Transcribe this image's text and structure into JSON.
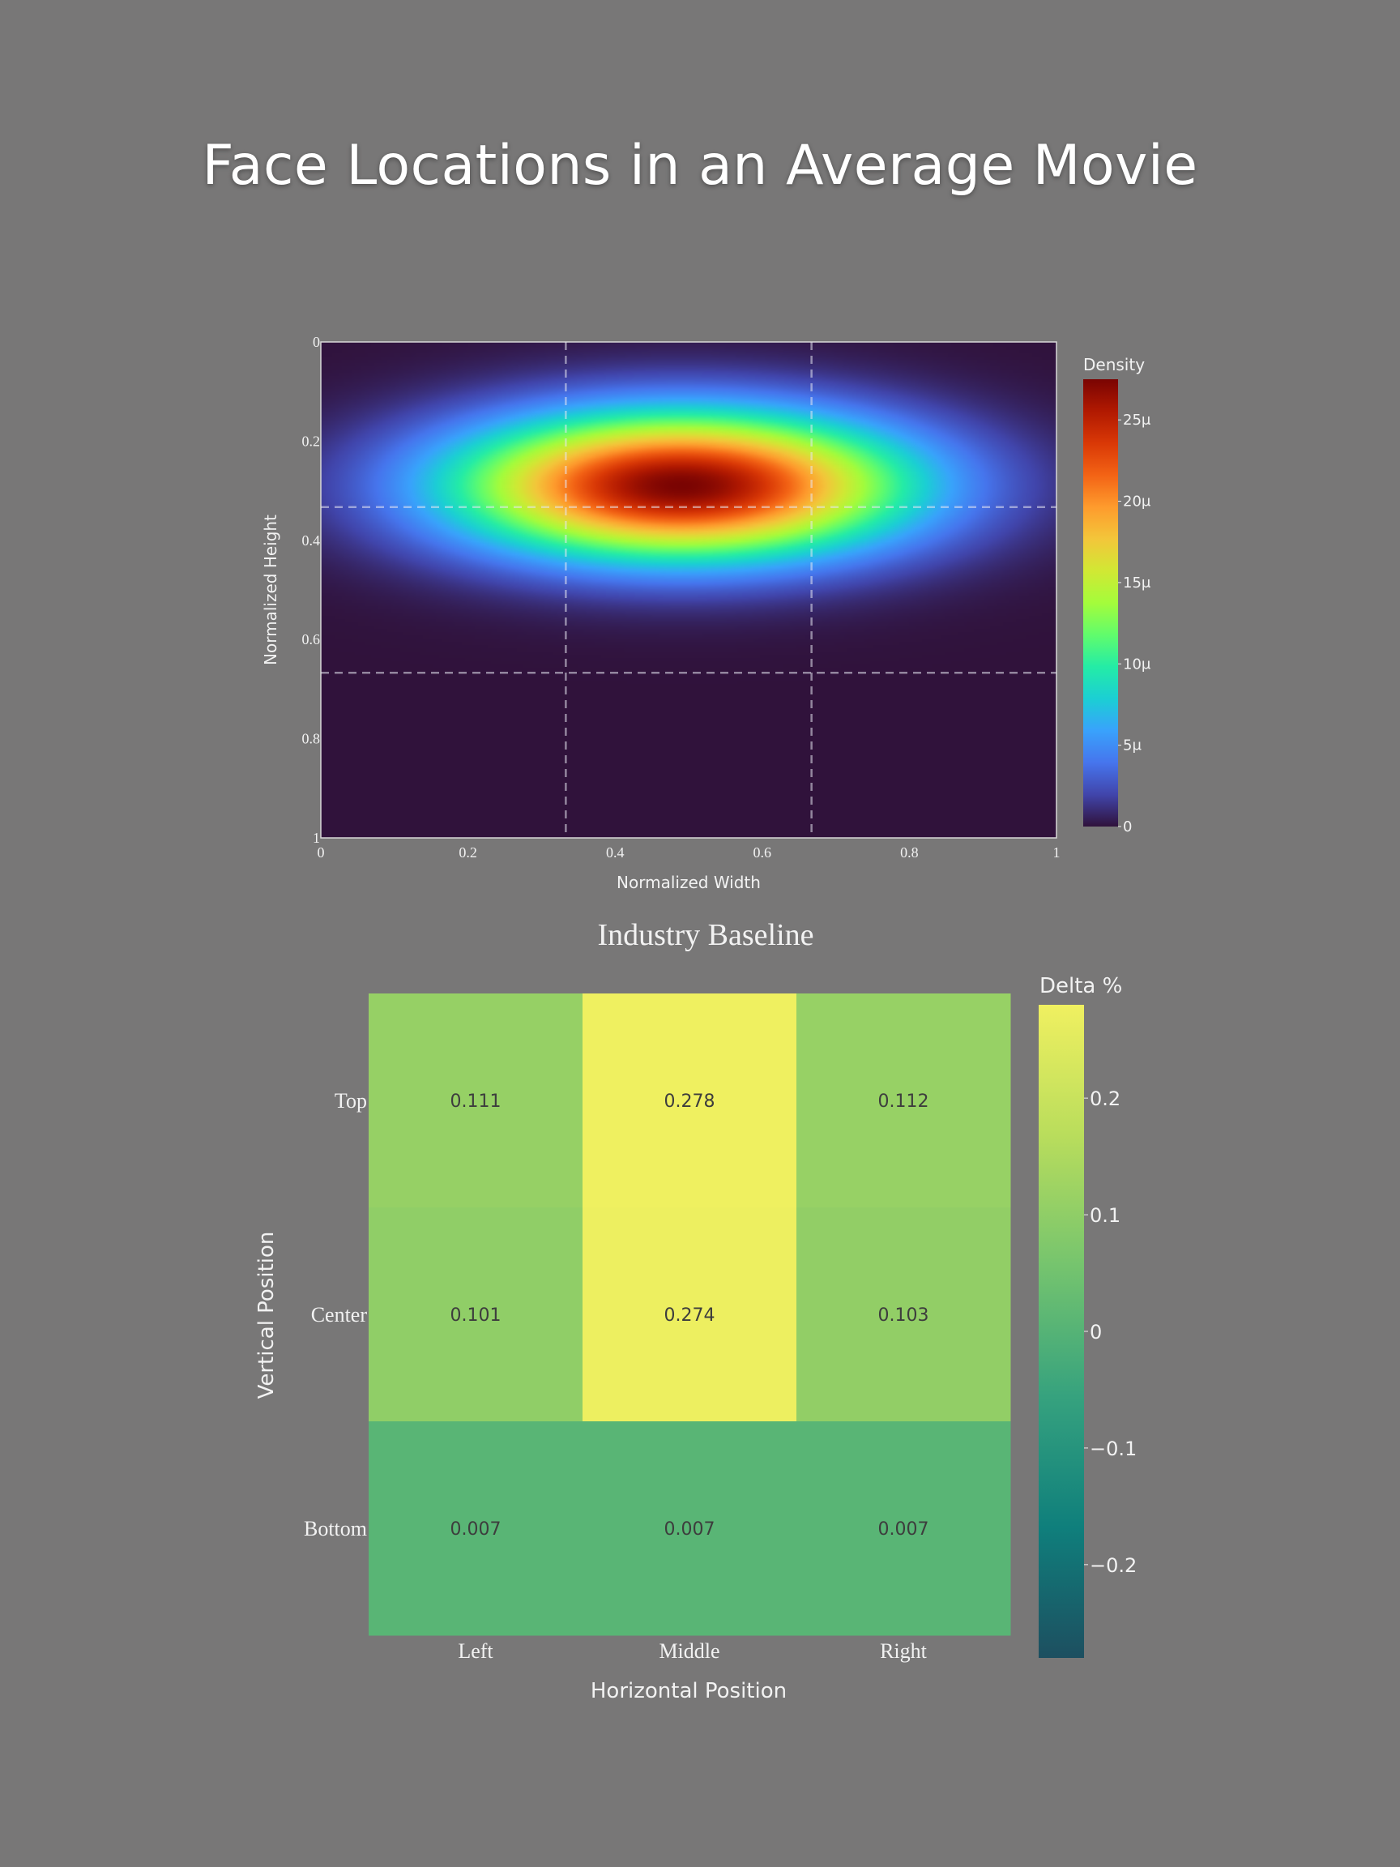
{
  "page_title": "Face Locations in an Average Movie",
  "chart_data": [
    {
      "type": "heatmap",
      "description_id": "density",
      "xlabel": "Normalized Width",
      "ylabel": "Normalized Height",
      "xlim": [
        0,
        1
      ],
      "ylim": [
        1,
        0
      ],
      "x_ticks": [
        "0",
        "0.2",
        "0.4",
        "0.6",
        "0.8",
        "1"
      ],
      "y_ticks": [
        "0",
        "0.2",
        "0.4",
        "0.6",
        "0.8",
        "1"
      ],
      "grid_lines": {
        "x": [
          0.333,
          0.667
        ],
        "y": [
          0.333,
          0.667
        ]
      },
      "peak": {
        "x": 0.49,
        "y": 0.29,
        "value": 2.75e-05
      },
      "spread": {
        "sx": 0.21,
        "sy": 0.1
      },
      "colorbar": {
        "title": "Density",
        "ticks": [
          "0",
          "5μ",
          "10μ",
          "15μ",
          "20μ",
          "25μ"
        ],
        "range": [
          0,
          2.75e-05
        ],
        "colors": [
          "#30123b",
          "#4145ab",
          "#4675ed",
          "#39a2fc",
          "#1bcfd4",
          "#24eca6",
          "#61fc6c",
          "#a4fc3b",
          "#d1e834",
          "#f3c63a",
          "#fe9b2d",
          "#f36315",
          "#d93806",
          "#b11901",
          "#7a0402"
        ]
      }
    },
    {
      "type": "heatmap",
      "description_id": "baseline",
      "title": "Industry Baseline",
      "xlabel": "Horizontal Position",
      "ylabel": "Vertical Position",
      "categories_x": [
        "Left",
        "Middle",
        "Right"
      ],
      "categories_y": [
        "Top",
        "Center",
        "Bottom"
      ],
      "values": [
        [
          0.111,
          0.278,
          0.112
        ],
        [
          0.101,
          0.274,
          0.103
        ],
        [
          0.007,
          0.007,
          0.007
        ]
      ],
      "value_labels": [
        [
          "0.111",
          "0.278",
          "0.112"
        ],
        [
          "0.101",
          "0.274",
          "0.103"
        ],
        [
          "0.007",
          "0.007",
          "0.007"
        ]
      ],
      "colorbar": {
        "title": "Delta %",
        "range": [
          -0.28,
          0.28
        ],
        "ticks": [
          {
            "value": 0.2,
            "label": "0.2"
          },
          {
            "value": 0.1,
            "label": "0.1"
          },
          {
            "value": 0,
            "label": "0"
          },
          {
            "value": -0.1,
            "label": "−0.1"
          },
          {
            "value": -0.2,
            "label": "−0.2"
          }
        ],
        "colors": [
          "#1d4f60",
          "#0f7f7c",
          "#36a27e",
          "#75c46e",
          "#b9dd5c",
          "#f0f060"
        ]
      }
    }
  ]
}
